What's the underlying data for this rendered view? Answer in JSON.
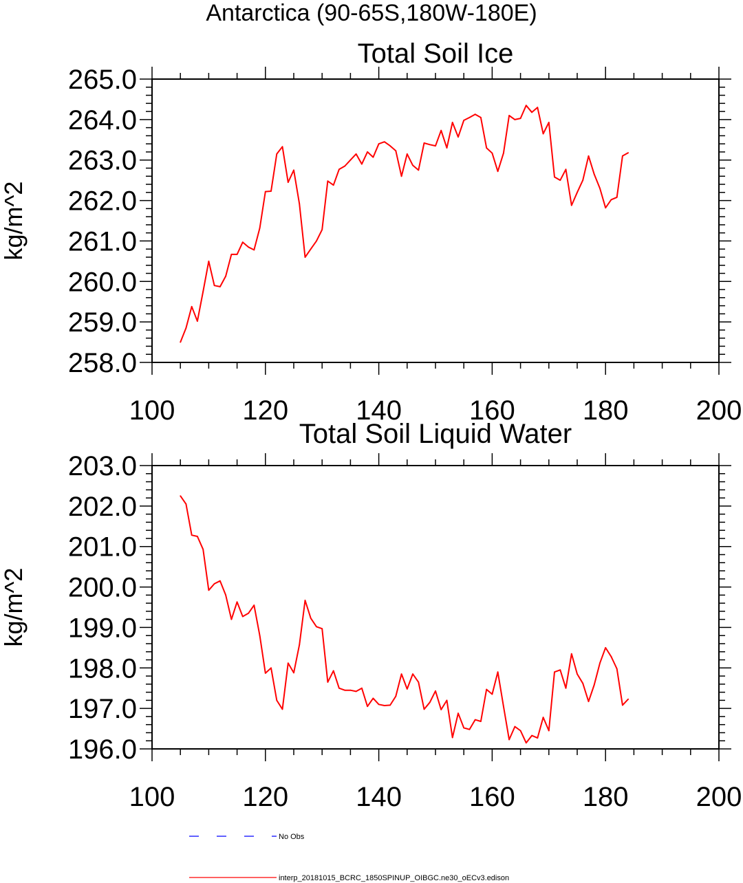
{
  "page_title": "Antarctica (90-65S,180W-180E)",
  "chart_data": [
    {
      "type": "line",
      "title": "Total Soil Ice",
      "xlabel": "",
      "ylabel": "kg/m^2",
      "xlim": [
        100,
        200
      ],
      "ylim": [
        258,
        265
      ],
      "xticks": [
        "100",
        "120",
        "140",
        "160",
        "180",
        "200"
      ],
      "yticks": [
        "258.0",
        "259.0",
        "260.0",
        "261.0",
        "262.0",
        "263.0",
        "264.0",
        "265.0"
      ],
      "series": [
        {
          "color": "#ff0000",
          "x": [
            105,
            106,
            107,
            108,
            109,
            110,
            111,
            112,
            113,
            114,
            115,
            116,
            117,
            118,
            119,
            120,
            121,
            122,
            123,
            124,
            125,
            126,
            127,
            128,
            129,
            130,
            131,
            132,
            133,
            134,
            135,
            136,
            137,
            138,
            139,
            140,
            141,
            142,
            143,
            144,
            145,
            146,
            147,
            148,
            149,
            150,
            151,
            152,
            153,
            154,
            155,
            156,
            157,
            158,
            159,
            160,
            161,
            162,
            163,
            164,
            165,
            166,
            167,
            168,
            169,
            170,
            171,
            172,
            173,
            174,
            175,
            176,
            177,
            178,
            179,
            180,
            181,
            182,
            183,
            184
          ],
          "values": [
            258.5,
            258.85,
            259.38,
            259.02,
            259.75,
            260.5,
            259.9,
            259.87,
            260.13,
            260.67,
            260.67,
            260.97,
            260.85,
            260.78,
            261.32,
            262.22,
            262.23,
            263.15,
            263.33,
            262.45,
            262.75,
            261.92,
            260.6,
            260.8,
            261.0,
            261.28,
            262.48,
            262.38,
            262.77,
            262.85,
            263.0,
            263.15,
            262.9,
            263.2,
            263.07,
            263.4,
            263.45,
            263.35,
            263.23,
            262.6,
            263.15,
            262.87,
            262.75,
            263.42,
            263.38,
            263.35,
            263.73,
            263.3,
            263.93,
            263.57,
            263.98,
            264.05,
            264.13,
            264.05,
            263.3,
            263.17,
            262.72,
            263.17,
            264.1,
            264.0,
            264.03,
            264.35,
            264.18,
            264.3,
            263.65,
            263.93,
            262.58,
            262.5,
            262.77,
            261.88,
            262.2,
            262.5,
            263.1,
            262.65,
            262.3,
            261.82,
            262.02,
            262.08,
            263.1,
            263.18
          ]
        }
      ]
    },
    {
      "type": "line",
      "title": "Total Soil Liquid Water",
      "xlabel": "",
      "ylabel": "kg/m^2",
      "xlim": [
        100,
        200
      ],
      "ylim": [
        196,
        203
      ],
      "xticks": [
        "100",
        "120",
        "140",
        "160",
        "180",
        "200"
      ],
      "yticks": [
        "196.0",
        "197.0",
        "198.0",
        "199.0",
        "200.0",
        "201.0",
        "202.0",
        "203.0"
      ],
      "series": [
        {
          "color": "#ff0000",
          "x": [
            105,
            106,
            107,
            108,
            109,
            110,
            111,
            112,
            113,
            114,
            115,
            116,
            117,
            118,
            119,
            120,
            121,
            122,
            123,
            124,
            125,
            126,
            127,
            128,
            129,
            130,
            131,
            132,
            133,
            134,
            135,
            136,
            137,
            138,
            139,
            140,
            141,
            142,
            143,
            144,
            145,
            146,
            147,
            148,
            149,
            150,
            151,
            152,
            153,
            154,
            155,
            156,
            157,
            158,
            159,
            160,
            161,
            162,
            163,
            164,
            165,
            166,
            167,
            168,
            169,
            170,
            171,
            172,
            173,
            174,
            175,
            176,
            177,
            178,
            179,
            180,
            181,
            182,
            183,
            184
          ],
          "values": [
            202.25,
            202.05,
            201.28,
            201.25,
            200.93,
            199.92,
            200.08,
            200.15,
            199.8,
            199.2,
            199.63,
            199.27,
            199.35,
            199.55,
            198.8,
            197.87,
            198.0,
            197.2,
            196.98,
            198.12,
            197.88,
            198.57,
            199.67,
            199.23,
            199.02,
            198.97,
            197.65,
            197.93,
            197.5,
            197.45,
            197.45,
            197.42,
            197.5,
            197.05,
            197.25,
            197.1,
            197.07,
            197.08,
            197.3,
            197.85,
            197.48,
            197.85,
            197.65,
            196.98,
            197.15,
            197.43,
            196.97,
            197.2,
            196.28,
            196.88,
            196.52,
            196.48,
            196.72,
            196.68,
            197.47,
            197.35,
            197.9,
            197.05,
            196.23,
            196.55,
            196.45,
            196.15,
            196.33,
            196.27,
            196.78,
            196.45,
            197.9,
            197.95,
            197.5,
            198.35,
            197.85,
            197.62,
            197.17,
            197.58,
            198.12,
            198.5,
            198.28,
            197.98,
            197.08,
            197.23
          ]
        }
      ]
    }
  ],
  "legend": [
    {
      "label": "No Obs",
      "color": "#0000ff",
      "style": "dashed"
    },
    {
      "label": "interp_20181015_BCRC_1850SPINUP_OIBGC.ne30_oECv3.edison",
      "color": "#ff0000",
      "style": "solid"
    }
  ]
}
